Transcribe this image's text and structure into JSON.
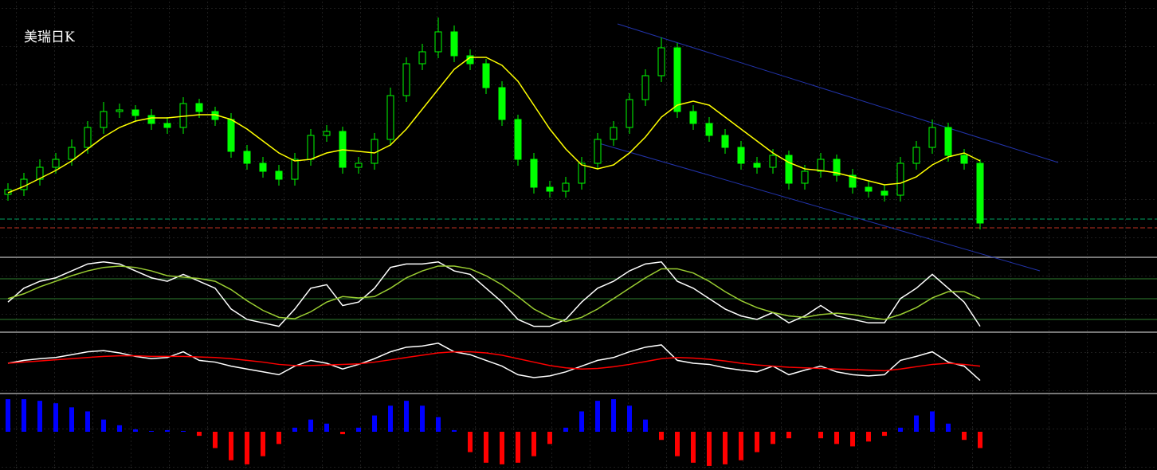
{
  "chart_data": [
    {
      "type": "candlestick",
      "title": "美瑞日K",
      "up_color": "#00ff00",
      "down_color": "#00ff00",
      "ylim": [
        0,
        322
      ],
      "open": [
        78,
        84,
        97,
        112,
        122,
        137,
        162,
        182,
        184,
        177,
        167,
        162,
        192,
        182,
        172,
        132,
        117,
        107,
        97,
        122,
        152,
        157,
        112,
        117,
        147,
        202,
        242,
        257,
        282,
        252,
        242,
        212,
        172,
        122,
        87,
        82,
        92,
        117,
        147,
        162,
        197,
        227,
        262,
        182,
        167,
        152,
        137,
        117,
        112,
        127,
        92,
        107,
        122,
        102,
        87,
        82,
        77,
        117,
        137,
        162,
        127,
        117
      ],
      "high": [
        92,
        105,
        122,
        130,
        147,
        170,
        194,
        192,
        190,
        185,
        175,
        200,
        198,
        188,
        180,
        140,
        125,
        115,
        130,
        160,
        165,
        163,
        125,
        155,
        212,
        250,
        267,
        300,
        290,
        260,
        248,
        220,
        178,
        130,
        95,
        100,
        125,
        155,
        170,
        205,
        235,
        275,
        268,
        190,
        175,
        160,
        145,
        125,
        135,
        133,
        115,
        130,
        128,
        110,
        95,
        90,
        125,
        145,
        172,
        168,
        135,
        122
      ],
      "low": [
        70,
        76,
        89,
        104,
        114,
        129,
        154,
        174,
        169,
        159,
        154,
        154,
        174,
        164,
        124,
        109,
        99,
        89,
        89,
        114,
        144,
        104,
        104,
        109,
        139,
        194,
        234,
        249,
        244,
        234,
        204,
        164,
        114,
        79,
        74,
        74,
        84,
        109,
        139,
        154,
        189,
        219,
        174,
        159,
        144,
        129,
        109,
        104,
        104,
        84,
        84,
        99,
        94,
        79,
        74,
        69,
        69,
        109,
        129,
        119,
        109,
        34
      ],
      "close": [
        84,
        97,
        112,
        122,
        137,
        162,
        182,
        184,
        177,
        167,
        162,
        192,
        182,
        172,
        132,
        117,
        107,
        97,
        122,
        152,
        157,
        112,
        117,
        147,
        202,
        242,
        257,
        282,
        252,
        242,
        212,
        172,
        122,
        87,
        82,
        92,
        117,
        147,
        162,
        197,
        227,
        262,
        182,
        167,
        152,
        137,
        117,
        112,
        127,
        92,
        107,
        122,
        102,
        87,
        82,
        77,
        117,
        137,
        162,
        127,
        117,
        42
      ],
      "series": [
        {
          "color": "#ffff00",
          "values": [
            80,
            88,
            98,
            108,
            120,
            135,
            150,
            162,
            170,
            174,
            174,
            176,
            178,
            178,
            172,
            160,
            145,
            130,
            120,
            122,
            130,
            134,
            132,
            130,
            140,
            160,
            185,
            210,
            235,
            250,
            250,
            240,
            220,
            190,
            160,
            135,
            115,
            110,
            115,
            130,
            150,
            175,
            190,
            195,
            190,
            175,
            160,
            145,
            130,
            118,
            110,
            108,
            105,
            100,
            95,
            90,
            92,
            100,
            115,
            125,
            130,
            120
          ]
        }
      ]
    },
    {
      "type": "line",
      "ylim": [
        0,
        100
      ],
      "series": [
        {
          "color": "#ffffff",
          "values": [
            40,
            60,
            70,
            75,
            85,
            95,
            98,
            95,
            85,
            75,
            70,
            80,
            70,
            60,
            30,
            15,
            10,
            5,
            30,
            60,
            65,
            35,
            40,
            60,
            90,
            95,
            95,
            98,
            85,
            80,
            60,
            40,
            15,
            5,
            5,
            15,
            40,
            60,
            70,
            85,
            95,
            98,
            70,
            60,
            45,
            30,
            20,
            15,
            25,
            10,
            20,
            35,
            20,
            15,
            10,
            10,
            45,
            60,
            80,
            60,
            40,
            5
          ]
        },
        {
          "color": "#9acd32",
          "values": [
            45,
            52,
            62,
            70,
            78,
            85,
            90,
            92,
            90,
            85,
            78,
            76,
            74,
            70,
            58,
            42,
            28,
            18,
            16,
            26,
            40,
            48,
            46,
            48,
            60,
            75,
            85,
            92,
            92,
            88,
            78,
            65,
            48,
            30,
            18,
            12,
            18,
            30,
            45,
            60,
            75,
            88,
            88,
            82,
            70,
            55,
            42,
            32,
            25,
            20,
            18,
            22,
            24,
            22,
            18,
            15,
            22,
            32,
            46,
            55,
            55,
            45
          ]
        }
      ]
    },
    {
      "type": "line",
      "ylim": [
        0,
        100
      ],
      "series": [
        {
          "color": "#ffffff",
          "values": [
            50,
            55,
            58,
            60,
            65,
            70,
            72,
            68,
            62,
            58,
            60,
            70,
            55,
            52,
            45,
            40,
            35,
            30,
            45,
            55,
            50,
            40,
            48,
            58,
            70,
            78,
            80,
            85,
            70,
            65,
            55,
            45,
            30,
            25,
            28,
            35,
            45,
            55,
            60,
            70,
            78,
            82,
            55,
            50,
            48,
            42,
            38,
            35,
            45,
            30,
            38,
            45,
            35,
            30,
            28,
            30,
            55,
            62,
            70,
            52,
            45,
            20
          ]
        },
        {
          "color": "#ff0000",
          "values": [
            50,
            52,
            54,
            56,
            58,
            60,
            62,
            63,
            63,
            62,
            62,
            62,
            61,
            60,
            58,
            55,
            52,
            48,
            46,
            46,
            47,
            48,
            49,
            52,
            56,
            60,
            64,
            68,
            70,
            70,
            68,
            64,
            58,
            52,
            46,
            42,
            40,
            41,
            44,
            48,
            53,
            58,
            60,
            59,
            57,
            54,
            50,
            47,
            45,
            43,
            42,
            41,
            40,
            39,
            38,
            37,
            40,
            44,
            48,
            50,
            48,
            45
          ]
        }
      ]
    },
    {
      "type": "histogram",
      "ylim": [
        -45,
        45
      ],
      "positive_color": "#0000ff",
      "negative_color": "#ff0000",
      "values": [
        40,
        40,
        38,
        35,
        30,
        25,
        15,
        8,
        3,
        1,
        2,
        1,
        -5,
        -20,
        -35,
        -40,
        -30,
        -15,
        5,
        15,
        10,
        -3,
        5,
        20,
        32,
        38,
        32,
        18,
        2,
        -25,
        -38,
        -40,
        -38,
        -30,
        -15,
        5,
        25,
        38,
        40,
        32,
        15,
        -10,
        -30,
        -38,
        -42,
        -40,
        -35,
        -25,
        -15,
        -8,
        0,
        -8,
        -15,
        -18,
        -12,
        -5,
        5,
        20,
        25,
        10,
        -10,
        -20
      ]
    }
  ]
}
